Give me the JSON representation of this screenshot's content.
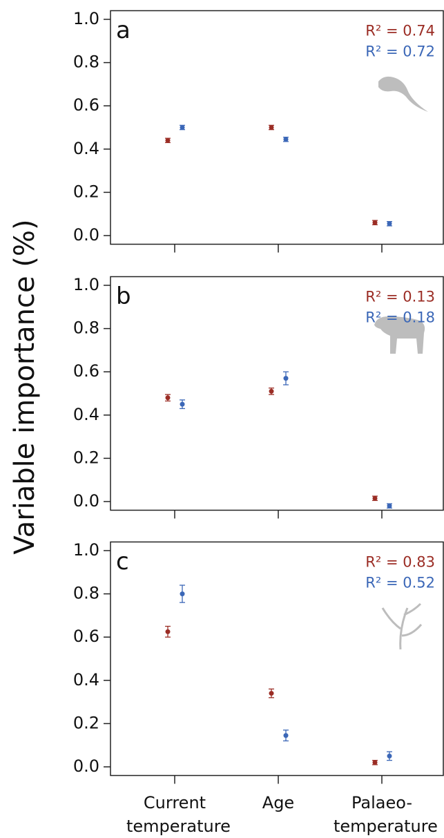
{
  "y_label": "Variable importance (%)",
  "chart_data": [
    {
      "type": "scatter",
      "title": "a",
      "categories": [
        null,
        null,
        null
      ],
      "ylim": [
        -0.04,
        1.04
      ],
      "yticks": [
        {
          "value": 0,
          "label": "0.0"
        },
        0.2,
        0.4,
        0.6,
        0.8,
        {
          "value": 1,
          "label": "1.0"
        }
      ],
      "series": [
        {
          "color": "#9b2d25",
          "values": [
            0.44,
            0.5,
            0.06
          ],
          "errors": [
            0.01,
            0.01,
            0.01
          ]
        },
        {
          "color": "#3b67b7",
          "values": [
            0.5,
            0.445,
            0.055
          ],
          "errors": [
            0.01,
            0.01,
            0.01
          ]
        }
      ],
      "annotations": [
        {
          "text": "R² = 0.74",
          "color": "#9b2d25"
        },
        {
          "text": "R² = 0.72",
          "color": "#3b67b7"
        }
      ]
    },
    {
      "type": "scatter",
      "title": "b",
      "categories": [
        null,
        null,
        null
      ],
      "ylim": [
        -0.04,
        1.04
      ],
      "yticks": [
        {
          "value": 0,
          "label": "0.0"
        },
        0.2,
        0.4,
        0.6,
        0.8,
        {
          "value": 1,
          "label": "1.0"
        }
      ],
      "series": [
        {
          "color": "#9b2d25",
          "values": [
            0.48,
            0.51,
            0.015
          ],
          "errors": [
            0.015,
            0.015,
            0.01
          ]
        },
        {
          "color": "#3b67b7",
          "values": [
            0.45,
            0.57,
            -0.02
          ],
          "errors": [
            0.02,
            0.03,
            0.01
          ]
        }
      ],
      "annotations": [
        {
          "text": "R² = 0.13",
          "color": "#9b2d25"
        },
        {
          "text": "R² = 0.18",
          "color": "#3b67b7"
        }
      ]
    },
    {
      "type": "scatter",
      "title": "c",
      "categories": [
        "Current temperature",
        "Age",
        "Palaeo-temperature"
      ],
      "ylim": [
        -0.04,
        1.04
      ],
      "yticks": [
        {
          "value": 0,
          "label": "0.0"
        },
        0.2,
        0.4,
        0.6,
        0.8,
        {
          "value": 1,
          "label": "1.0"
        }
      ],
      "series": [
        {
          "color": "#9b2d25",
          "values": [
            0.625,
            0.34,
            0.02
          ],
          "errors": [
            0.025,
            0.02,
            0.01
          ]
        },
        {
          "color": "#3b67b7",
          "values": [
            0.8,
            0.145,
            0.05
          ],
          "errors": [
            0.04,
            0.025,
            0.02
          ]
        }
      ],
      "annotations": [
        {
          "text": "R² = 0.83",
          "color": "#9b2d25"
        },
        {
          "text": "R² = 0.52",
          "color": "#3b67b7"
        }
      ]
    }
  ]
}
